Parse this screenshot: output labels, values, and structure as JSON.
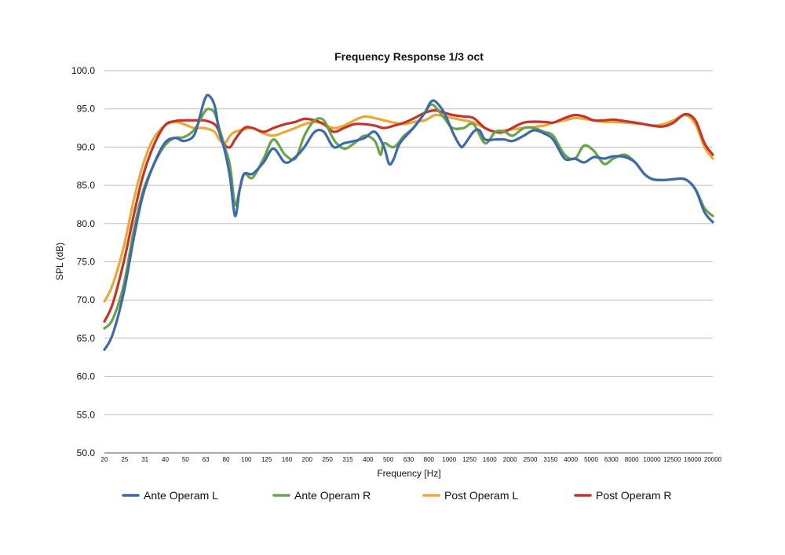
{
  "chart_data": {
    "type": "line",
    "title": "Frequency Response 1/3 oct",
    "xlabel": "Frequency [Hz]",
    "ylabel": "SPL (dB)",
    "ylim": [
      50,
      100
    ],
    "yticks": [
      "50.0",
      "55.0",
      "60.0",
      "65.0",
      "70.0",
      "75.0",
      "80.0",
      "85.0",
      "90.0",
      "95.0",
      "100.0"
    ],
    "grid": true,
    "legend_position": "bottom",
    "x_tick_labels": [
      "20",
      "25",
      "31",
      "40",
      "50",
      "63",
      "80",
      "100",
      "125",
      "160",
      "200",
      "250",
      "315",
      "400",
      "500",
      "630",
      "800",
      "1000",
      "1250",
      "1600",
      "2000",
      "2500",
      "3150",
      "4000",
      "5000",
      "6300",
      "8000",
      "10000",
      "12500",
      "16000",
      "20000"
    ],
    "series": [
      {
        "name": "Ante Operam L",
        "color": "#3d6aa8",
        "points": [
          [
            20,
            63.5
          ],
          [
            22,
            65.5
          ],
          [
            25,
            71
          ],
          [
            28,
            78
          ],
          [
            31,
            83.5
          ],
          [
            35,
            87.5
          ],
          [
            40,
            90.5
          ],
          [
            45,
            91.2
          ],
          [
            50,
            90.8
          ],
          [
            56,
            91.5
          ],
          [
            60,
            94
          ],
          [
            63,
            96
          ],
          [
            66,
            96.8
          ],
          [
            71,
            95.5
          ],
          [
            75,
            92
          ],
          [
            80,
            89.5
          ],
          [
            85,
            86
          ],
          [
            90,
            81
          ],
          [
            95,
            84.5
          ],
          [
            100,
            86.5
          ],
          [
            110,
            86.5
          ],
          [
            125,
            88
          ],
          [
            140,
            89.8
          ],
          [
            160,
            88
          ],
          [
            180,
            88.7
          ],
          [
            200,
            90
          ],
          [
            225,
            92
          ],
          [
            250,
            92
          ],
          [
            280,
            90
          ],
          [
            315,
            90.5
          ],
          [
            355,
            90.8
          ],
          [
            400,
            91.2
          ],
          [
            450,
            92
          ],
          [
            500,
            90
          ],
          [
            530,
            87.8
          ],
          [
            560,
            88.5
          ],
          [
            600,
            90.5
          ],
          [
            700,
            92.5
          ],
          [
            800,
            94.5
          ],
          [
            850,
            95.8
          ],
          [
            900,
            96
          ],
          [
            1000,
            94.5
          ],
          [
            1100,
            92
          ],
          [
            1200,
            90.2
          ],
          [
            1250,
            90.2
          ],
          [
            1400,
            92
          ],
          [
            1500,
            92.2
          ],
          [
            1600,
            91
          ],
          [
            1800,
            91
          ],
          [
            2000,
            91
          ],
          [
            2200,
            90.8
          ],
          [
            2500,
            91.5
          ],
          [
            2800,
            92.2
          ],
          [
            3150,
            91.8
          ],
          [
            3500,
            91
          ],
          [
            4000,
            88.5
          ],
          [
            4500,
            88.5
          ],
          [
            5000,
            88
          ],
          [
            5600,
            88.7
          ],
          [
            6300,
            88.5
          ],
          [
            7000,
            88.8
          ],
          [
            8000,
            88.7
          ],
          [
            9000,
            88
          ],
          [
            10000,
            86.5
          ],
          [
            11000,
            85.8
          ],
          [
            12500,
            85.7
          ],
          [
            14000,
            85.8
          ],
          [
            16000,
            85.8
          ],
          [
            18000,
            84.5
          ],
          [
            20000,
            81.5
          ],
          [
            22000,
            80.2
          ]
        ]
      },
      {
        "name": "Ante Operam R",
        "color": "#6aa34a",
        "points": [
          [
            20,
            66.3
          ],
          [
            22,
            67.5
          ],
          [
            25,
            72
          ],
          [
            28,
            79
          ],
          [
            31,
            84
          ],
          [
            35,
            87.5
          ],
          [
            40,
            90.2
          ],
          [
            45,
            91.2
          ],
          [
            50,
            91.3
          ],
          [
            56,
            92.2
          ],
          [
            60,
            93.5
          ],
          [
            63,
            94.5
          ],
          [
            66,
            95
          ],
          [
            71,
            94.5
          ],
          [
            75,
            92.5
          ],
          [
            80,
            90
          ],
          [
            85,
            87.5
          ],
          [
            90,
            82.5
          ],
          [
            95,
            84.5
          ],
          [
            100,
            86.5
          ],
          [
            110,
            86
          ],
          [
            125,
            88.5
          ],
          [
            140,
            91
          ],
          [
            160,
            89
          ],
          [
            180,
            88.5
          ],
          [
            200,
            91.5
          ],
          [
            225,
            93.5
          ],
          [
            250,
            93.5
          ],
          [
            280,
            91
          ],
          [
            315,
            89.8
          ],
          [
            355,
            90.5
          ],
          [
            400,
            91.5
          ],
          [
            450,
            90.8
          ],
          [
            480,
            89
          ],
          [
            500,
            90.5
          ],
          [
            560,
            90
          ],
          [
            630,
            91.5
          ],
          [
            700,
            92.5
          ],
          [
            800,
            94.5
          ],
          [
            850,
            95.5
          ],
          [
            900,
            95.3
          ],
          [
            1000,
            93.8
          ],
          [
            1100,
            92.5
          ],
          [
            1250,
            92.5
          ],
          [
            1400,
            93
          ],
          [
            1600,
            90.5
          ],
          [
            1800,
            92
          ],
          [
            2000,
            92
          ],
          [
            2200,
            91.5
          ],
          [
            2500,
            92.5
          ],
          [
            2800,
            92.5
          ],
          [
            3150,
            92
          ],
          [
            3500,
            91.5
          ],
          [
            4000,
            89
          ],
          [
            4500,
            88.5
          ],
          [
            5000,
            90.2
          ],
          [
            5600,
            89.5
          ],
          [
            6300,
            87.8
          ],
          [
            7000,
            88.5
          ],
          [
            8000,
            89
          ],
          [
            9000,
            88
          ],
          [
            10000,
            86.5
          ],
          [
            11000,
            85.8
          ],
          [
            12500,
            85.7
          ],
          [
            14000,
            85.8
          ],
          [
            16000,
            85.8
          ],
          [
            18000,
            84.5
          ],
          [
            20000,
            82
          ],
          [
            22000,
            81
          ]
        ]
      },
      {
        "name": "Post Operam L",
        "color": "#e8a93a",
        "points": [
          [
            20,
            69.8
          ],
          [
            22,
            72
          ],
          [
            25,
            77
          ],
          [
            28,
            83
          ],
          [
            31,
            87.5
          ],
          [
            35,
            91
          ],
          [
            40,
            92.8
          ],
          [
            45,
            93.3
          ],
          [
            50,
            93
          ],
          [
            56,
            92.5
          ],
          [
            63,
            92.5
          ],
          [
            71,
            92
          ],
          [
            75,
            91
          ],
          [
            80,
            90.5
          ],
          [
            85,
            91.5
          ],
          [
            90,
            92
          ],
          [
            100,
            92.3
          ],
          [
            110,
            92.5
          ],
          [
            125,
            91.8
          ],
          [
            140,
            91.5
          ],
          [
            160,
            92
          ],
          [
            180,
            92.5
          ],
          [
            200,
            93
          ],
          [
            225,
            93.3
          ],
          [
            250,
            93
          ],
          [
            280,
            92.5
          ],
          [
            315,
            92.8
          ],
          [
            355,
            93.5
          ],
          [
            400,
            94
          ],
          [
            450,
            93.8
          ],
          [
            500,
            93.5
          ],
          [
            560,
            93.2
          ],
          [
            630,
            93
          ],
          [
            710,
            93.3
          ],
          [
            800,
            93.5
          ],
          [
            900,
            94.2
          ],
          [
            1000,
            94
          ],
          [
            1100,
            93.8
          ],
          [
            1250,
            93.5
          ],
          [
            1400,
            93.2
          ],
          [
            1600,
            92.5
          ],
          [
            1800,
            92
          ],
          [
            2000,
            92.2
          ],
          [
            2500,
            92.5
          ],
          [
            3150,
            92.8
          ],
          [
            3500,
            93.2
          ],
          [
            4000,
            93.5
          ],
          [
            4500,
            93.8
          ],
          [
            5000,
            93.7
          ],
          [
            5600,
            93.5
          ],
          [
            6300,
            93.3
          ],
          [
            7000,
            93.3
          ],
          [
            8000,
            93.2
          ],
          [
            9000,
            93.1
          ],
          [
            10000,
            93
          ],
          [
            11000,
            92.8
          ],
          [
            12500,
            93
          ],
          [
            14000,
            93.5
          ],
          [
            16000,
            94.2
          ],
          [
            18000,
            93
          ],
          [
            20000,
            90
          ],
          [
            22000,
            88.5
          ]
        ]
      },
      {
        "name": "Post Operam R",
        "color": "#c2352c",
        "points": [
          [
            20,
            67.2
          ],
          [
            22,
            69.5
          ],
          [
            25,
            75
          ],
          [
            28,
            81
          ],
          [
            31,
            86
          ],
          [
            35,
            90
          ],
          [
            40,
            92.8
          ],
          [
            45,
            93.4
          ],
          [
            50,
            93.5
          ],
          [
            56,
            93.5
          ],
          [
            63,
            93.5
          ],
          [
            71,
            93
          ],
          [
            75,
            92
          ],
          [
            80,
            90.3
          ],
          [
            85,
            90
          ],
          [
            90,
            91
          ],
          [
            100,
            92.5
          ],
          [
            110,
            92.5
          ],
          [
            125,
            92
          ],
          [
            140,
            92.5
          ],
          [
            160,
            93
          ],
          [
            180,
            93.3
          ],
          [
            200,
            93.7
          ],
          [
            225,
            93.5
          ],
          [
            250,
            93
          ],
          [
            280,
            92
          ],
          [
            315,
            92.5
          ],
          [
            355,
            93
          ],
          [
            400,
            93
          ],
          [
            450,
            92.8
          ],
          [
            500,
            92.5
          ],
          [
            560,
            92.8
          ],
          [
            630,
            93.2
          ],
          [
            710,
            93.8
          ],
          [
            800,
            94.5
          ],
          [
            900,
            94.8
          ],
          [
            1000,
            94.5
          ],
          [
            1100,
            94.2
          ],
          [
            1250,
            94
          ],
          [
            1400,
            93.8
          ],
          [
            1600,
            92.5
          ],
          [
            1800,
            92
          ],
          [
            2000,
            92
          ],
          [
            2500,
            93.2
          ],
          [
            3150,
            93.3
          ],
          [
            3500,
            93.2
          ],
          [
            4000,
            93.8
          ],
          [
            4500,
            94.2
          ],
          [
            5000,
            94
          ],
          [
            5600,
            93.5
          ],
          [
            6300,
            93.5
          ],
          [
            7000,
            93.6
          ],
          [
            8000,
            93.4
          ],
          [
            9000,
            93.2
          ],
          [
            10000,
            93
          ],
          [
            11000,
            92.8
          ],
          [
            12500,
            92.7
          ],
          [
            14000,
            93.2
          ],
          [
            16000,
            94.3
          ],
          [
            18000,
            93.5
          ],
          [
            20000,
            90.5
          ],
          [
            22000,
            89
          ]
        ]
      }
    ]
  }
}
